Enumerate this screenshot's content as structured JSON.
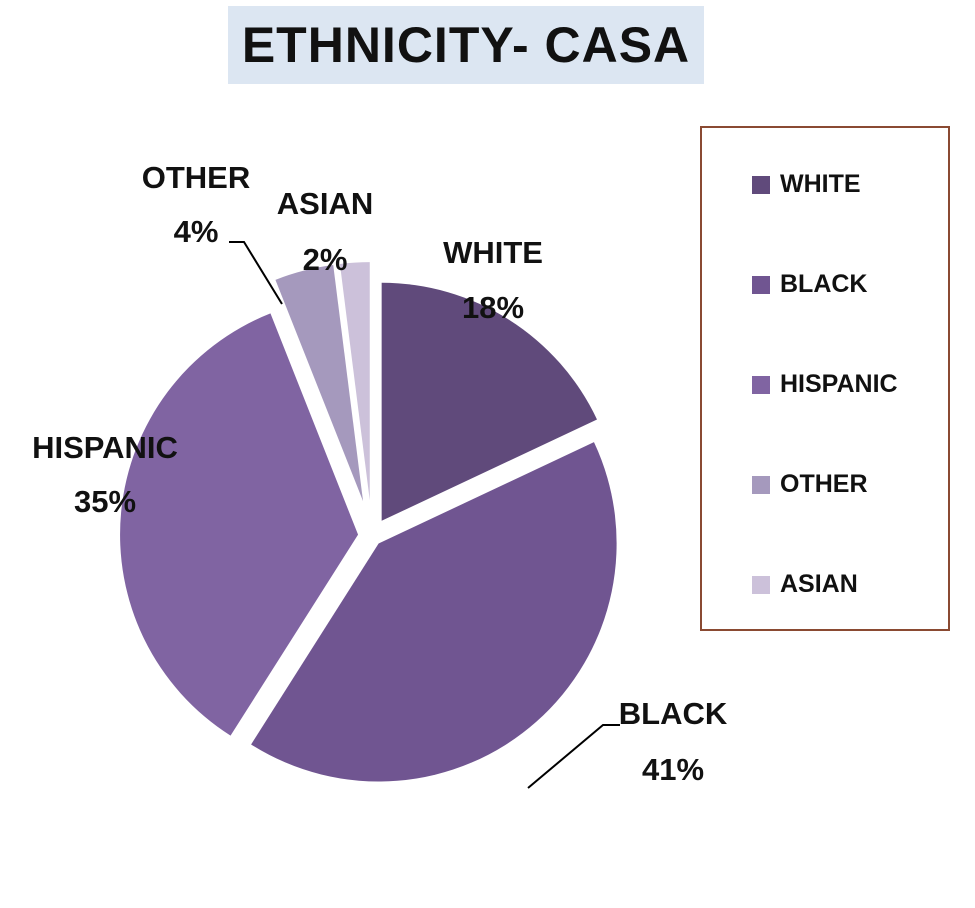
{
  "chart_data": {
    "type": "pie",
    "title": "ETHNICITY- CASA",
    "slices": [
      {
        "label": "WHITE",
        "value": 18,
        "value_label": "18%",
        "color": "#604a7b"
      },
      {
        "label": "BLACK",
        "value": 41,
        "value_label": "41%",
        "color": "#705591"
      },
      {
        "label": "HISPANIC",
        "value": 35,
        "value_label": "35%",
        "color": "#8064a2"
      },
      {
        "label": "OTHER",
        "value": 4,
        "value_label": "4%",
        "color": "#a599bd"
      },
      {
        "label": "ASIAN",
        "value": 2,
        "value_label": "2%",
        "color": "#ccc1da"
      }
    ],
    "legend": {
      "position": "right",
      "items": [
        "WHITE",
        "BLACK",
        "HISPANIC",
        "OTHER",
        "ASIAN"
      ]
    }
  }
}
